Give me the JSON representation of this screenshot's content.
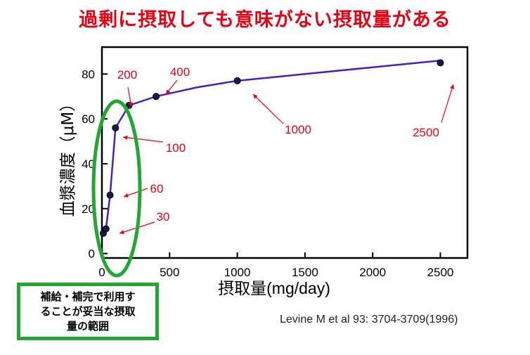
{
  "title": "過剰に摂取しても意味がない摂取量がある",
  "chart_data": {
    "type": "line",
    "xlabel": "摂取量(mg/day)",
    "ylabel": "血漿濃度（μM）",
    "xlim": [
      0,
      2700
    ],
    "ylim": [
      -2,
      92
    ],
    "x_ticks": [
      0,
      500,
      1000,
      1500,
      2000,
      2500
    ],
    "y_ticks": [
      0,
      20,
      40,
      60,
      80
    ],
    "series": [
      {
        "name": "plasma concentration",
        "x": [
          10,
          30,
          60,
          100,
          200,
          400,
          1000,
          2500
        ],
        "y": [
          9,
          11,
          26,
          56,
          66,
          70,
          77,
          85
        ],
        "color": "#4a1fbf"
      }
    ],
    "fit_curve": {
      "x": [
        10,
        30,
        60,
        100,
        200,
        400,
        700,
        1000,
        1500,
        2000,
        2500
      ],
      "y": [
        9,
        11,
        26,
        56,
        66,
        70,
        74,
        77,
        80,
        83,
        86
      ]
    },
    "annotations": [
      {
        "label": "30",
        "x": 30,
        "y": 11
      },
      {
        "label": "60",
        "x": 60,
        "y": 26
      },
      {
        "label": "100",
        "x": 100,
        "y": 56
      },
      {
        "label": "200",
        "x": 200,
        "y": 66
      },
      {
        "label": "400",
        "x": 400,
        "y": 70
      },
      {
        "label": "1000",
        "x": 1000,
        "y": 77
      },
      {
        "label": "2500",
        "x": 2500,
        "y": 85
      }
    ],
    "annotation_color": "#e60012",
    "highlight_color": "#22a832"
  },
  "note": "補給・補完で利用す\nることが妥当な摂取\n量の範囲",
  "citation": "Levine M   et al 93: 3704-3709(1996)"
}
